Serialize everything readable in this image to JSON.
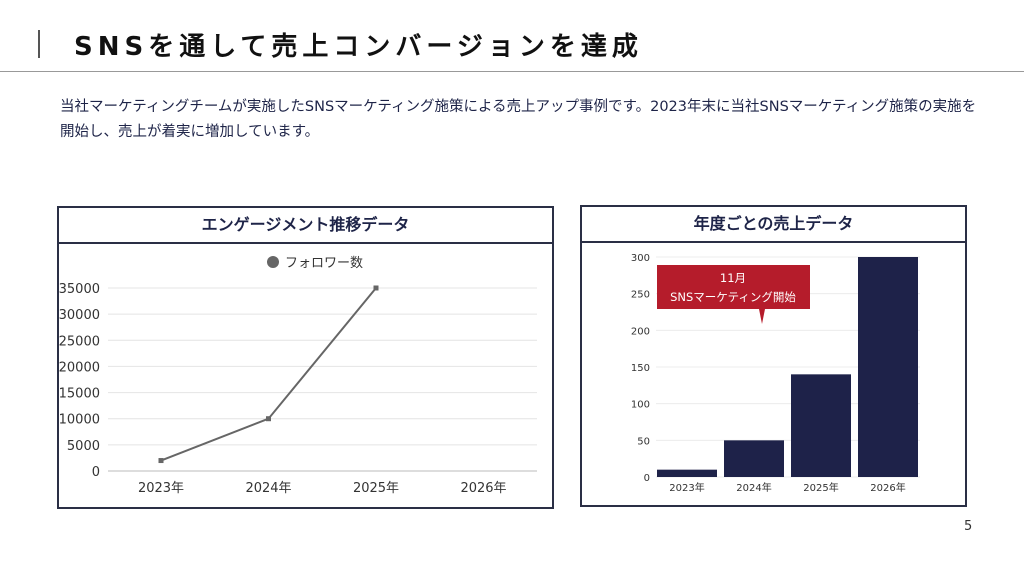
{
  "title": "SNSを通して売上コンバージョンを達成",
  "description": "当社マーケティングチームが実施したSNSマーケティング施策による売上アップ事例です。2023年末に当社SNSマーケティング施策の実施を開始し、売上が着実に増加しています。",
  "page_number": "5",
  "colors": {
    "bar": "#1e2249",
    "line": "#666666",
    "callout": "#b51c2b"
  },
  "chart_data": [
    {
      "type": "line",
      "title": "エンゲージメント推移データ",
      "legend": "フォロワー数",
      "legend_position": "top-center",
      "categories": [
        "2023年",
        "2024年",
        "2025年",
        "2026年"
      ],
      "series": [
        {
          "name": "フォロワー数",
          "values": [
            2000,
            10000,
            35000,
            null
          ]
        }
      ],
      "yticks": [
        "0",
        "5000",
        "10000",
        "15000",
        "20000",
        "25000",
        "30000",
        "35000"
      ],
      "ylim": [
        0,
        35000
      ],
      "grid": true
    },
    {
      "type": "bar",
      "title": "年度ごとの売上データ",
      "categories": [
        "2023年",
        "2024年",
        "2025年",
        "2026年"
      ],
      "values": [
        10,
        50,
        140,
        300
      ],
      "yticks": [
        "0",
        "50",
        "100",
        "150",
        "200",
        "250",
        "300"
      ],
      "ylim": [
        0,
        300
      ],
      "grid": true,
      "annotation": {
        "line1": "11月",
        "line2": "SNSマーケティング開始"
      }
    }
  ]
}
